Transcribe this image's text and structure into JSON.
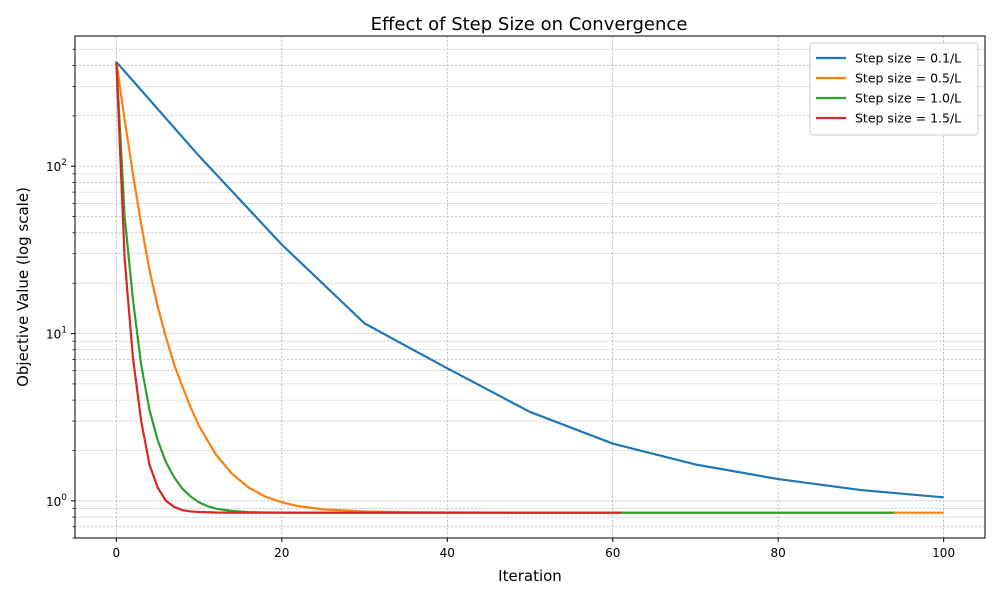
{
  "chart_data": {
    "type": "line",
    "title": "Effect of Step Size on Convergence",
    "xlabel": "Iteration",
    "ylabel": "Objective Value (log scale)",
    "xlim": [
      -5,
      105
    ],
    "ylim": [
      0.6,
      600
    ],
    "yscale": "log",
    "grid": true,
    "legend_position": "top-right",
    "x_ticks": [
      {
        "value": 0,
        "label": "0"
      },
      {
        "value": 20,
        "label": "20"
      },
      {
        "value": 40,
        "label": "40"
      },
      {
        "value": 60,
        "label": "60"
      },
      {
        "value": 80,
        "label": "80"
      },
      {
        "value": 100,
        "label": "100"
      }
    ],
    "y_ticks": [
      {
        "value": 1,
        "base": "10",
        "exp": "0"
      },
      {
        "value": 10,
        "base": "10",
        "exp": "1"
      },
      {
        "value": 100,
        "base": "10",
        "exp": "2"
      }
    ],
    "series": [
      {
        "name": "Step size = 0.1/L",
        "color": "#1f77b4",
        "x": [
          0,
          10,
          20,
          30,
          40,
          50,
          60,
          70,
          80,
          90,
          100
        ],
        "y": [
          420,
          115,
          34,
          11.5,
          6.2,
          3.4,
          2.2,
          1.65,
          1.35,
          1.16,
          1.05
        ]
      },
      {
        "name": "Step size = 0.5/L",
        "color": "#ff7f0e",
        "x": [
          0,
          1,
          2,
          3,
          4,
          5,
          6,
          7,
          8,
          9,
          10,
          12,
          14,
          16,
          18,
          20,
          22,
          25,
          30,
          35,
          40,
          50,
          60,
          70,
          80,
          90,
          100
        ],
        "y": [
          420,
          190,
          90,
          45,
          24,
          14.5,
          9.5,
          6.5,
          4.8,
          3.6,
          2.8,
          1.9,
          1.45,
          1.2,
          1.06,
          0.98,
          0.93,
          0.89,
          0.865,
          0.856,
          0.852,
          0.85,
          0.85,
          0.85,
          0.85,
          0.85,
          0.85
        ]
      },
      {
        "name": "Step size = 1.0/L",
        "color": "#2ca02c",
        "x": [
          0,
          1,
          2,
          3,
          4,
          5,
          6,
          7,
          8,
          9,
          10,
          11,
          12,
          14,
          16,
          18,
          20,
          30,
          40,
          60,
          80,
          94
        ],
        "y": [
          420,
          50,
          16,
          6.5,
          3.5,
          2.3,
          1.7,
          1.38,
          1.18,
          1.06,
          0.98,
          0.93,
          0.9,
          0.87,
          0.857,
          0.853,
          0.851,
          0.85,
          0.85,
          0.85,
          0.85,
          0.85
        ]
      },
      {
        "name": "Step size = 1.5/L",
        "color": "#d62728",
        "x": [
          0,
          1,
          2,
          3,
          4,
          5,
          6,
          7,
          8,
          9,
          10,
          12,
          15,
          20,
          30,
          40,
          50,
          61
        ],
        "y": [
          420,
          28,
          7.2,
          3.0,
          1.65,
          1.2,
          1.0,
          0.92,
          0.88,
          0.865,
          0.858,
          0.852,
          0.85,
          0.85,
          0.85,
          0.85,
          0.85,
          0.85
        ]
      }
    ]
  }
}
